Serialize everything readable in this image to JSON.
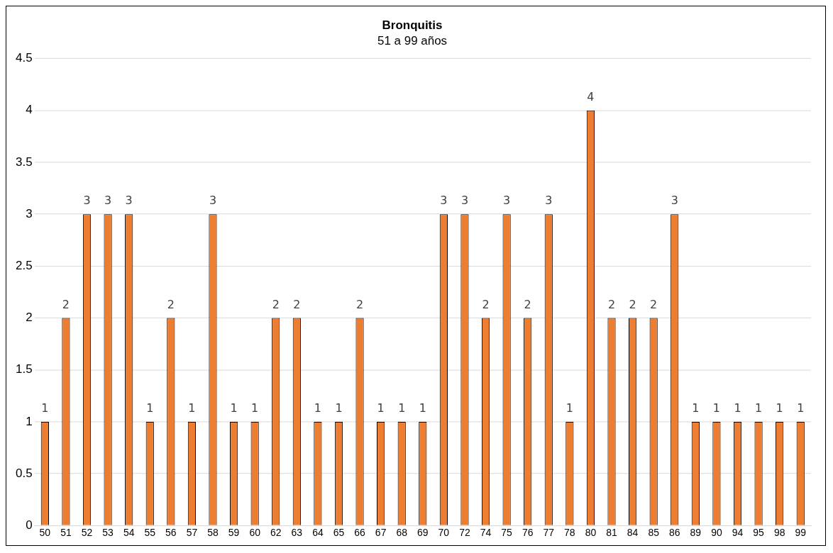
{
  "chart_data": {
    "type": "bar",
    "title": "Bronquitis",
    "subtitle": "51 a 99 años",
    "categories": [
      "50",
      "51",
      "52",
      "53",
      "54",
      "55",
      "56",
      "57",
      "58",
      "59",
      "60",
      "62",
      "63",
      "64",
      "65",
      "66",
      "67",
      "68",
      "69",
      "70",
      "72",
      "74",
      "75",
      "76",
      "77",
      "78",
      "80",
      "81",
      "84",
      "85",
      "86",
      "89",
      "90",
      "94",
      "95",
      "98",
      "99"
    ],
    "values": [
      1,
      2,
      3,
      3,
      3,
      1,
      2,
      1,
      3,
      1,
      1,
      2,
      2,
      1,
      1,
      2,
      1,
      1,
      1,
      3,
      3,
      2,
      3,
      2,
      3,
      1,
      4,
      2,
      2,
      2,
      3,
      1,
      1,
      1,
      1,
      1,
      1
    ],
    "color": "#ed7d31",
    "ylim": [
      0,
      4.5
    ],
    "yticks": [
      0,
      0.5,
      1,
      1.5,
      2,
      2.5,
      3,
      3.5,
      4,
      4.5
    ],
    "grid": "y",
    "data_labels": true,
    "legend": false
  }
}
